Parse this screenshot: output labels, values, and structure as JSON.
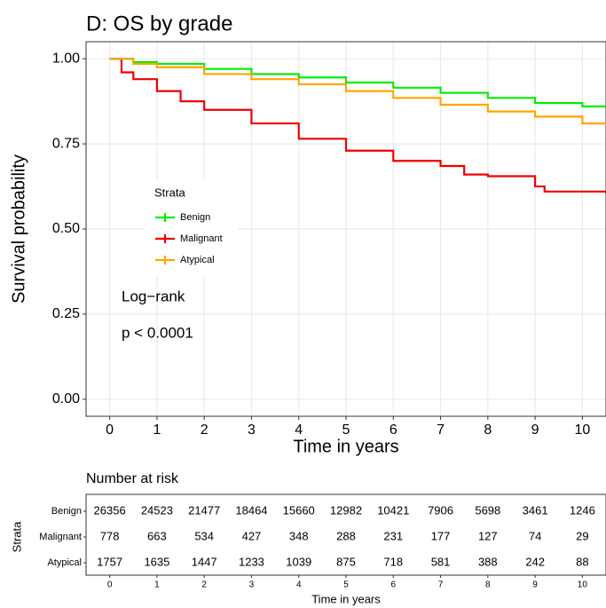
{
  "chart_data": [
    {
      "type": "step",
      "title": "D: OS by grade",
      "xlabel": "Time in years",
      "ylabel": "Survival probability",
      "xlim": [
        -0.5,
        10.5
      ],
      "ylim": [
        -0.05,
        1.05
      ],
      "xticks": [
        0,
        1,
        2,
        3,
        4,
        5,
        6,
        7,
        8,
        9,
        10
      ],
      "yticks": [
        {
          "value": 0,
          "label": "0.00"
        },
        {
          "value": 0.25,
          "label": "0.25"
        },
        {
          "value": 0.5,
          "label": "0.50"
        },
        {
          "value": 0.75,
          "label": "0.75"
        },
        {
          "value": 1,
          "label": "1.00"
        }
      ],
      "grid": true,
      "legend_title": "Strata",
      "annotations": [
        "Log−rank",
        "p < 0.0001"
      ],
      "series": [
        {
          "name": "Benign",
          "color": "#00ee00",
          "x": [
            0,
            0.5,
            1,
            2,
            3,
            4,
            5,
            6,
            7,
            8,
            9,
            10,
            10.5
          ],
          "values": [
            1.0,
            0.99,
            0.985,
            0.97,
            0.955,
            0.945,
            0.93,
            0.915,
            0.9,
            0.885,
            0.87,
            0.86,
            0.855
          ]
        },
        {
          "name": "Malignant",
          "color": "#ee0000",
          "x": [
            0,
            0.25,
            0.5,
            1,
            1.5,
            2,
            3,
            4,
            5,
            6,
            7,
            7.5,
            8,
            9,
            9.2,
            10.5
          ],
          "values": [
            1.0,
            0.96,
            0.94,
            0.905,
            0.875,
            0.85,
            0.81,
            0.765,
            0.73,
            0.7,
            0.685,
            0.66,
            0.655,
            0.625,
            0.61,
            0.605
          ]
        },
        {
          "name": "Atypical",
          "color": "#ffa500",
          "x": [
            0,
            0.5,
            1,
            2,
            3,
            4,
            5,
            6,
            7,
            8,
            9,
            10,
            10.5
          ],
          "values": [
            1.0,
            0.985,
            0.975,
            0.955,
            0.94,
            0.925,
            0.905,
            0.885,
            0.865,
            0.845,
            0.83,
            0.81,
            0.805
          ]
        }
      ]
    },
    {
      "type": "risk_table",
      "title": "Number at risk",
      "xlabel": "Time in years",
      "ylabel": "Strata",
      "xlim": [
        -0.5,
        10.5
      ],
      "xticks": [
        0,
        1,
        2,
        3,
        4,
        5,
        6,
        7,
        8,
        9,
        10
      ],
      "rows": [
        {
          "name": "Benign",
          "color": "#00ee00",
          "values": [
            26356,
            24523,
            21477,
            18464,
            15660,
            12982,
            10421,
            7906,
            5698,
            3461,
            1246
          ]
        },
        {
          "name": "Malignant",
          "color": "#ee0000",
          "values": [
            778,
            663,
            534,
            427,
            348,
            288,
            231,
            177,
            127,
            74,
            29
          ]
        },
        {
          "name": "Atypical",
          "color": "#ffa500",
          "values": [
            1757,
            1635,
            1447,
            1233,
            1039,
            875,
            718,
            581,
            388,
            242,
            88
          ]
        }
      ]
    }
  ]
}
